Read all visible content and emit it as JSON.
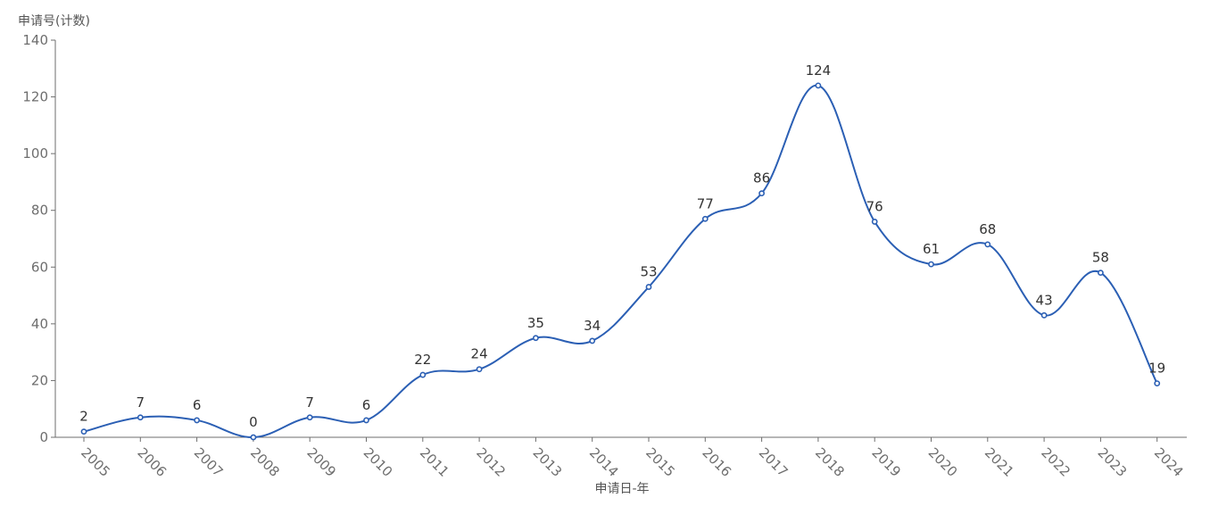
{
  "chart_data": {
    "type": "line",
    "ylabel": "申请号(计数)",
    "xlabel": "申请日-年",
    "ylim": [
      0,
      140
    ],
    "yticks": [
      "0",
      "20",
      "40",
      "60",
      "80",
      "100",
      "120",
      "140"
    ],
    "categories": [
      "2005",
      "2006",
      "2007",
      "2008",
      "2009",
      "2010",
      "2011",
      "2012",
      "2013",
      "2014",
      "2015",
      "2016",
      "2017",
      "2018",
      "2019",
      "2020",
      "2021",
      "2022",
      "2023",
      "2024"
    ],
    "series": [
      {
        "values": [
          2,
          7,
          6,
          0,
          7,
          6,
          22,
          24,
          35,
          34,
          53,
          77,
          86,
          124,
          76,
          61,
          68,
          43,
          58,
          19
        ]
      }
    ],
    "smooth": true,
    "grid": false,
    "line_color": "#2b5fb4",
    "marker_fill": "#ffffff"
  }
}
